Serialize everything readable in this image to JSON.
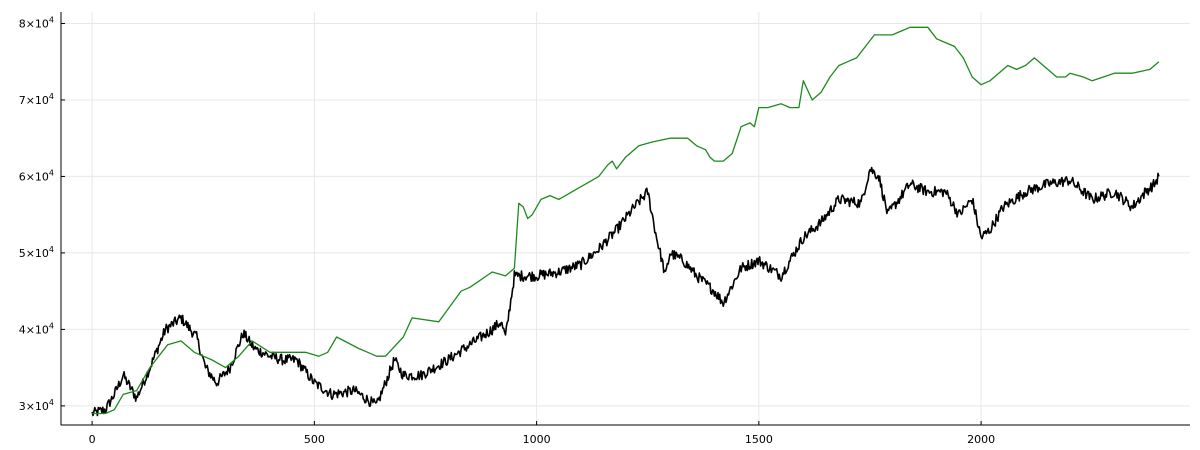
{
  "chart_data": {
    "type": "line",
    "title": "",
    "xlabel": "",
    "ylabel": "",
    "xlim": [
      -70,
      2470
    ],
    "ylim": [
      27500,
      81500
    ],
    "grid": true,
    "legend": "none",
    "x_ticks": [
      {
        "value": 0,
        "label": "0"
      },
      {
        "value": 500,
        "label": "500"
      },
      {
        "value": 1000,
        "label": "1000"
      },
      {
        "value": 1500,
        "label": "1500"
      },
      {
        "value": 2000,
        "label": "2000"
      }
    ],
    "y_ticks": [
      {
        "value": 30000,
        "mantissa": "3",
        "base": "×10",
        "exp": "4"
      },
      {
        "value": 40000,
        "mantissa": "4",
        "base": "×10",
        "exp": "4"
      },
      {
        "value": 50000,
        "mantissa": "5",
        "base": "×10",
        "exp": "4"
      },
      {
        "value": 60000,
        "mantissa": "6",
        "base": "×10",
        "exp": "4"
      },
      {
        "value": 70000,
        "mantissa": "7",
        "base": "×10",
        "exp": "4"
      },
      {
        "value": 80000,
        "mantissa": "8",
        "base": "×10",
        "exp": "4"
      }
    ],
    "series": [
      {
        "color": "#000000",
        "style": "noisy",
        "x": [
          0,
          30,
          50,
          70,
          100,
          130,
          165,
          200,
          235,
          255,
          280,
          310,
          340,
          365,
          400,
          430,
          460,
          500,
          540,
          590,
          640,
          680,
          700,
          740,
          800,
          850,
          900,
          920,
          930,
          950,
          1000,
          1050,
          1100,
          1140,
          1180,
          1220,
          1250,
          1270,
          1290,
          1300,
          1330,
          1360,
          1400,
          1420,
          1460,
          1500,
          1550,
          1600,
          1640,
          1680,
          1730,
          1750,
          1770,
          1790,
          1840,
          1880,
          1920,
          1950,
          1980,
          2000,
          2020,
          2050,
          2100,
          2150,
          2200,
          2250,
          2300,
          2340,
          2370,
          2390,
          2400
        ],
        "y": [
          29000,
          29500,
          31500,
          34000,
          31000,
          35000,
          40000,
          41500,
          39000,
          35000,
          33000,
          35000,
          39500,
          37500,
          36500,
          36000,
          36000,
          33000,
          31500,
          32000,
          30000,
          36000,
          34000,
          34000,
          36000,
          38000,
          40000,
          41000,
          39000,
          47000,
          47000,
          47500,
          48500,
          50500,
          53000,
          56000,
          58000,
          52000,
          47000,
          50000,
          49000,
          47000,
          45000,
          43500,
          48000,
          49000,
          47000,
          52000,
          54000,
          57000,
          56500,
          61000,
          60000,
          55000,
          59000,
          58000,
          58000,
          55000,
          57000,
          52000,
          53000,
          56000,
          58000,
          59000,
          59500,
          57000,
          58000,
          56000,
          58000,
          59000,
          60000
        ]
      },
      {
        "color": "#1e8a1e",
        "style": "smooth",
        "x": [
          0,
          30,
          50,
          70,
          100,
          130,
          170,
          200,
          230,
          270,
          300,
          330,
          360,
          400,
          440,
          480,
          510,
          530,
          550,
          600,
          620,
          640,
          660,
          700,
          720,
          780,
          830,
          850,
          900,
          930,
          950,
          960,
          970,
          980,
          990,
          1010,
          1030,
          1050,
          1080,
          1110,
          1140,
          1160,
          1170,
          1180,
          1200,
          1230,
          1260,
          1300,
          1320,
          1340,
          1360,
          1380,
          1390,
          1400,
          1420,
          1440,
          1460,
          1480,
          1490,
          1500,
          1520,
          1550,
          1570,
          1590,
          1600,
          1620,
          1640,
          1660,
          1680,
          1700,
          1720,
          1760,
          1800,
          1820,
          1840,
          1860,
          1880,
          1900,
          1920,
          1940,
          1960,
          1980,
          2000,
          2020,
          2060,
          2080,
          2100,
          2120,
          2150,
          2170,
          2190,
          2200,
          2230,
          2250,
          2300,
          2340,
          2380,
          2400
        ],
        "y": [
          29000,
          29000,
          29500,
          31500,
          32000,
          35000,
          38000,
          38500,
          37000,
          36000,
          35000,
          36500,
          38500,
          37000,
          37000,
          37000,
          36500,
          37000,
          39000,
          37500,
          37000,
          36500,
          36500,
          39000,
          41500,
          41000,
          45000,
          45500,
          47500,
          47000,
          48000,
          56500,
          56000,
          54500,
          55000,
          57000,
          57500,
          57000,
          58000,
          59000,
          60000,
          61500,
          62000,
          61000,
          62500,
          64000,
          64500,
          65000,
          65000,
          65000,
          64000,
          63500,
          62500,
          62000,
          62000,
          63000,
          66500,
          67000,
          66500,
          69000,
          69000,
          69500,
          69000,
          69000,
          72500,
          70000,
          71000,
          73000,
          74500,
          75000,
          75500,
          78500,
          78500,
          79000,
          79500,
          79500,
          79500,
          78000,
          77500,
          77000,
          75500,
          73000,
          72000,
          72500,
          74500,
          74000,
          74500,
          75500,
          74000,
          73000,
          73000,
          73500,
          73000,
          72500,
          73500,
          73500,
          74000,
          75000
        ]
      }
    ]
  }
}
